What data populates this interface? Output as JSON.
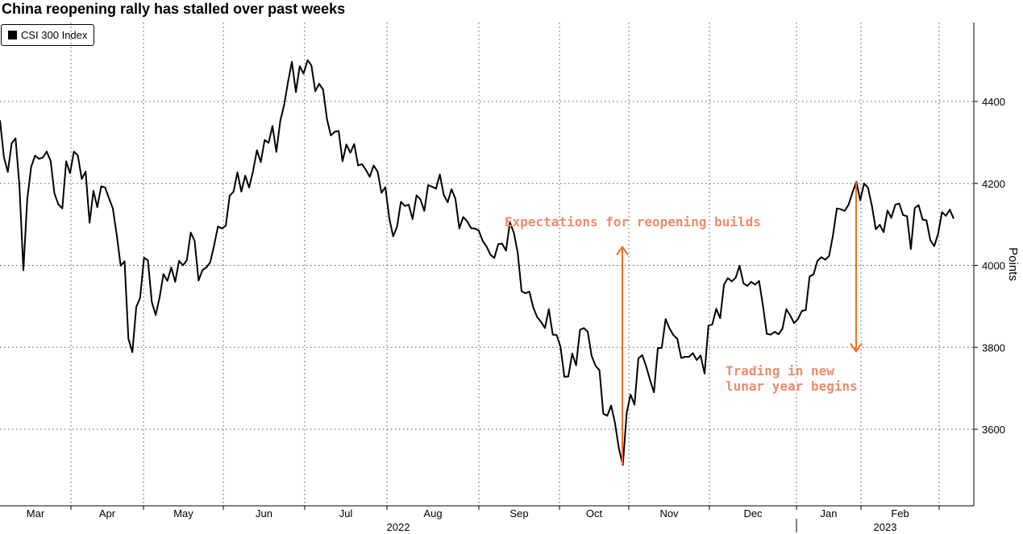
{
  "title": "China reopening rally has stalled over past weeks",
  "chart_data": {
    "type": "line",
    "title": "China reopening rally has stalled over past weeks",
    "ylabel": "Points",
    "ylim": [
      3420,
      4600
    ],
    "yticks": [
      3600,
      3800,
      4000,
      4200,
      4400
    ],
    "grid": true,
    "legend": "top-left",
    "months": [
      "Mar",
      "Apr",
      "May",
      "Jun",
      "Jul",
      "Aug",
      "Sep",
      "Oct",
      "Nov",
      "Dec",
      "Jan",
      "Feb"
    ],
    "years": [
      "2022",
      "2023"
    ],
    "series": [
      {
        "name": "CSI 300 Index",
        "color": "#000000",
        "values": [
          4354,
          4265,
          4228,
          4298,
          4310,
          4195,
          3988,
          4161,
          4240,
          4268,
          4260,
          4263,
          4278,
          4255,
          4175,
          4149,
          4139,
          4254,
          4225,
          4278,
          4268,
          4211,
          4229,
          4104,
          4182,
          4142,
          4193,
          4190,
          4164,
          4139,
          4073,
          3999,
          4010,
          3821,
          3788,
          3898,
          3921,
          4019,
          4012,
          3911,
          3879,
          3922,
          3979,
          3962,
          3995,
          3960,
          4011,
          4000,
          4013,
          4080,
          4060,
          3963,
          3988,
          3995,
          4007,
          4049,
          4095,
          4090,
          4097,
          4170,
          4180,
          4227,
          4180,
          4219,
          4190,
          4230,
          4281,
          4252,
          4306,
          4299,
          4340,
          4277,
          4353,
          4392,
          4448,
          4497,
          4423,
          4486,
          4468,
          4501,
          4488,
          4425,
          4443,
          4429,
          4357,
          4317,
          4326,
          4328,
          4254,
          4295,
          4275,
          4296,
          4244,
          4247,
          4233,
          4216,
          4244,
          4229,
          4177,
          4191,
          4115,
          4071,
          4094,
          4155,
          4145,
          4148,
          4113,
          4171,
          4161,
          4133,
          4196,
          4192,
          4187,
          4222,
          4172,
          4154,
          4186,
          4163,
          4090,
          4118,
          4108,
          4091,
          4090,
          4085,
          4060,
          4046,
          4026,
          4018,
          4052,
          4053,
          4036,
          4105,
          4080,
          4031,
          3937,
          3932,
          3936,
          3897,
          3874,
          3862,
          3847,
          3893,
          3831,
          3830,
          3801,
          3728,
          3729,
          3785,
          3756,
          3843,
          3847,
          3838,
          3779,
          3755,
          3744,
          3638,
          3633,
          3658,
          3615,
          3553,
          3513,
          3640,
          3685,
          3660,
          3773,
          3781,
          3754,
          3720,
          3690,
          3798,
          3799,
          3869,
          3846,
          3830,
          3821,
          3774,
          3777,
          3777,
          3786,
          3769,
          3780,
          3736,
          3853,
          3856,
          3894,
          3871,
          3953,
          3969,
          3961,
          3970,
          3999,
          3956,
          3950,
          3960,
          3953,
          3962,
          3902,
          3833,
          3831,
          3838,
          3832,
          3845,
          3893,
          3878,
          3859,
          3869,
          3889,
          3891,
          3973,
          3978,
          4011,
          4020,
          4014,
          4023,
          4074,
          4139,
          4137,
          4133,
          4148,
          4178,
          4204,
          4159,
          4200,
          4189,
          4145,
          4088,
          4099,
          4081,
          4134,
          4116,
          4148,
          4151,
          4123,
          4120,
          4040,
          4140,
          4147,
          4112,
          4110,
          4062,
          4047,
          4077,
          4130,
          4121,
          4136,
          4114
        ]
      }
    ],
    "annotations": [
      {
        "text": "Expectations for reopening builds",
        "color": "#f08a6c"
      },
      {
        "text_lines": [
          "Trading in new",
          "lunar year begins"
        ],
        "color": "#f08a6c"
      }
    ],
    "arrows": [
      {
        "name": "reopening-arrow",
        "from_y": 3513,
        "to_y": 4045,
        "color": "#f26b21"
      },
      {
        "name": "lunar-year-arrow",
        "from_y": 4204,
        "to_y": 3790,
        "color": "#f26b21"
      }
    ]
  }
}
